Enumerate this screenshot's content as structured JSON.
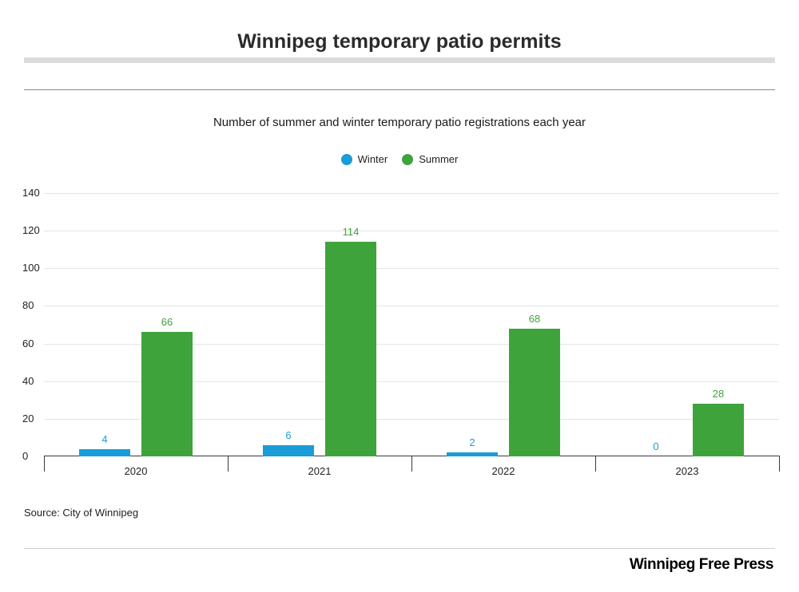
{
  "header": {
    "title": "Winnipeg temporary patio permits"
  },
  "chart_data": {
    "type": "bar",
    "title": "Winnipeg temporary patio permits",
    "subtitle": "Number of summer and winter temporary patio registrations each year",
    "categories": [
      "2020",
      "2021",
      "2022",
      "2023"
    ],
    "series": [
      {
        "name": "Winter",
        "color": "#1a9cd8",
        "values": [
          4,
          6,
          2,
          0
        ]
      },
      {
        "name": "Summer",
        "color": "#3fa33c",
        "values": [
          66,
          114,
          68,
          28
        ]
      }
    ],
    "ylim": [
      0,
      140
    ],
    "yticks": [
      0,
      20,
      40,
      60,
      80,
      100,
      120,
      140
    ],
    "grid": true,
    "legend_position": "top"
  },
  "footer": {
    "source": "Source: City of Winnipeg",
    "brand": "Winnipeg Free Press"
  }
}
